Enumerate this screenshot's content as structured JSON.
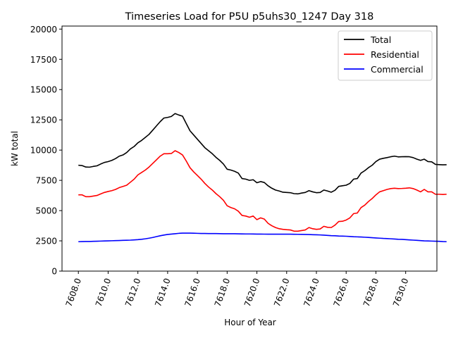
{
  "chart_data": {
    "type": "line",
    "title": "Timeseries Load for P5U p5uhs30_1247  Day 318",
    "xlabel": "Hour of Year",
    "ylabel": "kW total",
    "xlim": [
      7606.9,
      7632.1
    ],
    "ylim": [
      0,
      20250
    ],
    "xticks": [
      7608,
      7610,
      7612,
      7614,
      7616,
      7618,
      7620,
      7622,
      7624,
      7626,
      7628,
      7630
    ],
    "xtick_labels": [
      "7608.0",
      "7610.0",
      "7612.0",
      "7614.0",
      "7616.0",
      "7618.0",
      "7620.0",
      "7622.0",
      "7624.0",
      "7626.0",
      "7628.0",
      "7630.0"
    ],
    "yticks": [
      0,
      2500,
      5000,
      7500,
      10000,
      12500,
      15000,
      17500,
      20000
    ],
    "ytick_labels": [
      "0",
      "2500",
      "5000",
      "7500",
      "10000",
      "12500",
      "15000",
      "17500",
      "20000"
    ],
    "grid": false,
    "legend_position": "top-right",
    "x_start": 7608,
    "x_step": 0.25,
    "series": [
      {
        "name": "Total",
        "color": "#000000",
        "values": [
          8750,
          8720,
          8600,
          8590,
          8650,
          8700,
          8850,
          8980,
          9050,
          9150,
          9300,
          9500,
          9600,
          9800,
          10100,
          10300,
          10600,
          10800,
          11050,
          11300,
          11650,
          12000,
          12350,
          12650,
          12700,
          12780,
          13020,
          12900,
          12800,
          12200,
          11600,
          11250,
          10900,
          10550,
          10200,
          9950,
          9700,
          9400,
          9150,
          8850,
          8420,
          8350,
          8250,
          8100,
          7650,
          7600,
          7500,
          7550,
          7300,
          7400,
          7320,
          7050,
          6850,
          6700,
          6620,
          6520,
          6500,
          6480,
          6400,
          6380,
          6450,
          6500,
          6650,
          6550,
          6480,
          6500,
          6700,
          6620,
          6520,
          6680,
          7000,
          7050,
          7100,
          7250,
          7600,
          7650,
          8100,
          8300,
          8550,
          8750,
          9050,
          9250,
          9320,
          9380,
          9450,
          9500,
          9440,
          9450,
          9460,
          9450,
          9380,
          9250,
          9150,
          9250,
          9050,
          9030,
          8820,
          8800,
          8780,
          8790
        ]
      },
      {
        "name": "Residential",
        "color": "#ff0000",
        "values": [
          6300,
          6300,
          6150,
          6150,
          6200,
          6250,
          6380,
          6500,
          6580,
          6650,
          6750,
          6900,
          7000,
          7100,
          7350,
          7600,
          7950,
          8150,
          8350,
          8600,
          8900,
          9200,
          9500,
          9700,
          9700,
          9720,
          9950,
          9800,
          9600,
          9100,
          8550,
          8200,
          7900,
          7600,
          7250,
          6950,
          6700,
          6400,
          6150,
          5850,
          5400,
          5250,
          5150,
          4950,
          4600,
          4550,
          4450,
          4550,
          4250,
          4400,
          4300,
          3950,
          3750,
          3600,
          3500,
          3450,
          3420,
          3400,
          3300,
          3300,
          3350,
          3400,
          3600,
          3500,
          3450,
          3480,
          3700,
          3620,
          3600,
          3800,
          4100,
          4120,
          4220,
          4400,
          4750,
          4800,
          5250,
          5450,
          5750,
          6000,
          6300,
          6550,
          6650,
          6750,
          6820,
          6850,
          6820,
          6830,
          6850,
          6880,
          6820,
          6700,
          6550,
          6750,
          6550,
          6550,
          6350,
          6350,
          6330,
          6350
        ]
      },
      {
        "name": "Commercial",
        "color": "#0000ff",
        "values": [
          2430,
          2440,
          2450,
          2450,
          2460,
          2470,
          2480,
          2490,
          2500,
          2510,
          2520,
          2530,
          2540,
          2550,
          2560,
          2580,
          2600,
          2630,
          2670,
          2720,
          2780,
          2850,
          2920,
          2980,
          3030,
          3060,
          3090,
          3120,
          3140,
          3140,
          3140,
          3130,
          3120,
          3110,
          3110,
          3105,
          3100,
          3100,
          3095,
          3090,
          3090,
          3090,
          3085,
          3080,
          3075,
          3070,
          3070,
          3065,
          3060,
          3060,
          3055,
          3050,
          3050,
          3050,
          3050,
          3050,
          3050,
          3050,
          3045,
          3040,
          3035,
          3030,
          3020,
          3010,
          3000,
          2990,
          2970,
          2950,
          2930,
          2920,
          2900,
          2890,
          2880,
          2860,
          2840,
          2830,
          2820,
          2800,
          2780,
          2760,
          2740,
          2720,
          2700,
          2690,
          2670,
          2650,
          2630,
          2620,
          2600,
          2580,
          2560,
          2540,
          2520,
          2500,
          2490,
          2480,
          2470,
          2460,
          2440,
          2430
        ]
      }
    ]
  }
}
